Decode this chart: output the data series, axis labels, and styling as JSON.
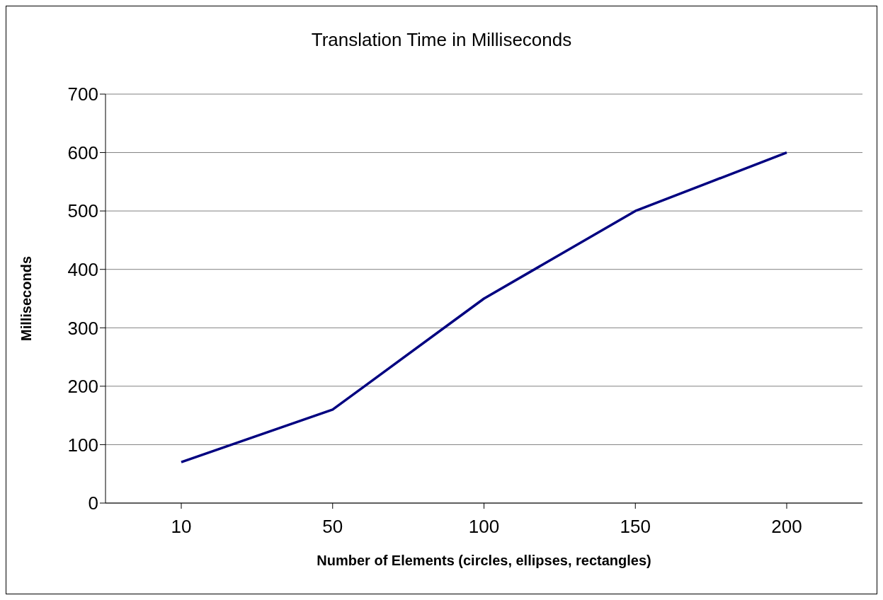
{
  "chart_data": {
    "type": "line",
    "title": "Translation Time in Milliseconds",
    "xlabel": "Number of Elements (circles, ellipses, rectangles)",
    "ylabel": "Milliseconds",
    "categories": [
      "10",
      "50",
      "100",
      "150",
      "200"
    ],
    "series": [
      {
        "color": "#000080",
        "values": [
          70,
          160,
          350,
          500,
          600
        ]
      }
    ],
    "ylim": [
      0,
      700
    ],
    "yticks": [
      0,
      100,
      200,
      300,
      400,
      500,
      600,
      700
    ],
    "grid": "y",
    "legend": false,
    "marker": "none",
    "line_style": "solid"
  }
}
